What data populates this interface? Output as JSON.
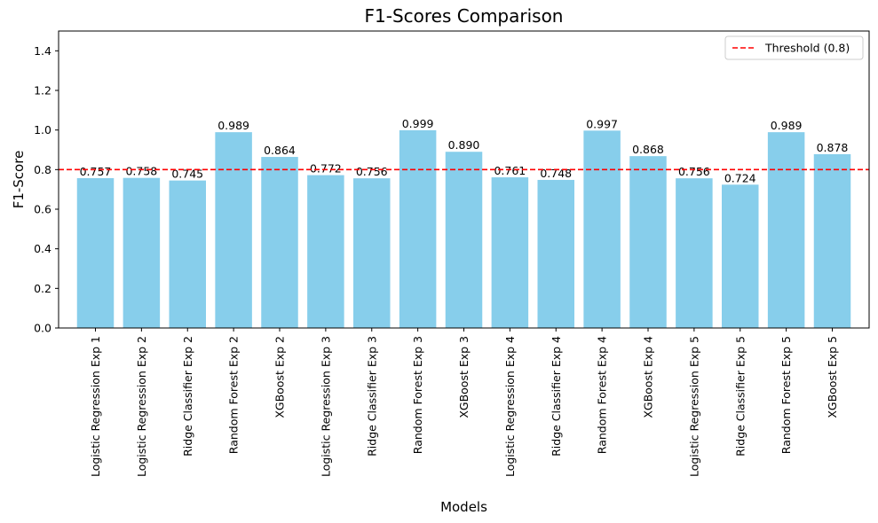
{
  "chart_data": {
    "type": "bar",
    "title": "F1-Scores Comparison",
    "xlabel": "Models",
    "ylabel": "F1-Score",
    "ylim": [
      0,
      1.5
    ],
    "yticks": [
      0.0,
      0.2,
      0.4,
      0.6,
      0.8,
      1.0,
      1.2,
      1.4
    ],
    "ytick_labels": [
      "0.0",
      "0.2",
      "0.4",
      "0.6",
      "0.8",
      "1.0",
      "1.2",
      "1.4"
    ],
    "categories": [
      "Logistic Regression Exp 1",
      "Logistic Regression Exp 2",
      "Ridge Classifier Exp 2",
      "Random Forest Exp 2",
      "XGBoost Exp 2",
      "Logistic Regression Exp 3",
      "Ridge Classifier Exp 3",
      "Random Forest Exp 3",
      "XGBoost Exp 3",
      "Logistic Regression Exp 4",
      "Ridge Classifier Exp 4",
      "Random Forest Exp 4",
      "XGBoost Exp 4",
      "Logistic Regression Exp 5",
      "Ridge Classifier Exp 5",
      "Random Forest Exp 5",
      "XGBoost Exp 5"
    ],
    "values": [
      0.757,
      0.758,
      0.745,
      0.989,
      0.864,
      0.772,
      0.756,
      0.999,
      0.89,
      0.761,
      0.748,
      0.997,
      0.868,
      0.756,
      0.724,
      0.989,
      0.878
    ],
    "value_labels": [
      "0.757",
      "0.758",
      "0.745",
      "0.989",
      "0.864",
      "0.772",
      "0.756",
      "0.999",
      "0.890",
      "0.761",
      "0.748",
      "0.997",
      "0.868",
      "0.756",
      "0.724",
      "0.989",
      "0.878"
    ],
    "bar_color": "#87ceeb",
    "threshold": {
      "value": 0.8,
      "label": "Threshold (0.8)",
      "color": "#ff0000",
      "style": "dashed"
    },
    "legend": {
      "position": "top-right"
    },
    "grid": false
  }
}
